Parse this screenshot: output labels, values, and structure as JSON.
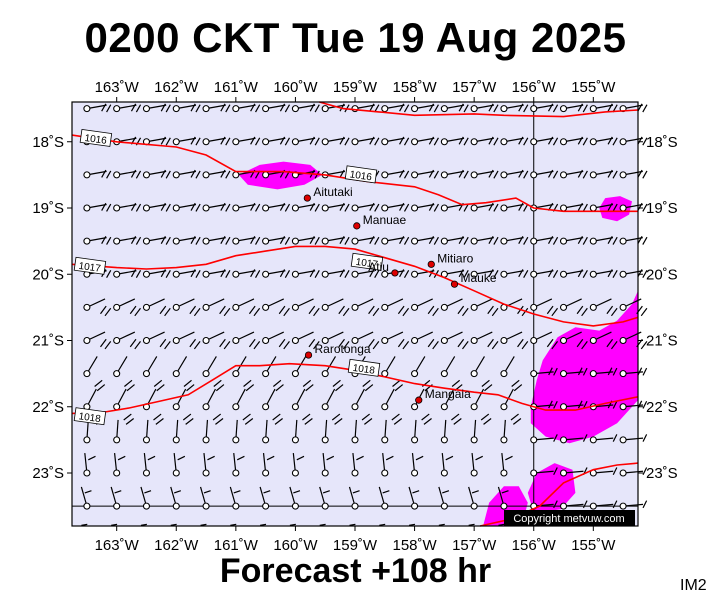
{
  "title": "0200 CKT Tue 19 Aug 2025",
  "forecast_label": "Forecast +108 hr",
  "model_id": "IM2",
  "copyright": "Copyright metvuw.com",
  "colors": {
    "background": "#e6e6fa",
    "isobar": "#ff0000",
    "rain": "#ff00ff",
    "island": "#dd0000"
  },
  "map": {
    "lon_range": [
      -163.75,
      -154.25
    ],
    "lat_range": [
      -23.8,
      -17.4
    ],
    "grid_lines": {
      "lon": -156,
      "lat": -23.5
    },
    "lon_ticks": [
      {
        "value": -163,
        "label": "163˚W"
      },
      {
        "value": -162,
        "label": "162˚W"
      },
      {
        "value": -161,
        "label": "161˚W"
      },
      {
        "value": -160,
        "label": "160˚W"
      },
      {
        "value": -159,
        "label": "159˚W"
      },
      {
        "value": -158,
        "label": "158˚W"
      },
      {
        "value": -157,
        "label": "157˚W"
      },
      {
        "value": -156,
        "label": "156˚W"
      },
      {
        "value": -155,
        "label": "155˚W"
      }
    ],
    "lat_ticks": [
      {
        "value": -18,
        "label": "18˚S"
      },
      {
        "value": -19,
        "label": "19˚S"
      },
      {
        "value": -20,
        "label": "20˚S"
      },
      {
        "value": -21,
        "label": "21˚S"
      },
      {
        "value": -22,
        "label": "22˚S"
      },
      {
        "value": -23,
        "label": "23˚S"
      }
    ],
    "islands": [
      {
        "name": "Aitutaki",
        "lon": -159.8,
        "lat": -18.85,
        "label_side": "right"
      },
      {
        "name": "Manuae",
        "lon": -158.97,
        "lat": -19.27,
        "label_side": "right"
      },
      {
        "name": "Mitiaro",
        "lon": -157.72,
        "lat": -19.85,
        "label_side": "right"
      },
      {
        "name": "Atiu",
        "lon": -158.33,
        "lat": -19.98,
        "label_side": "left"
      },
      {
        "name": "Mauke",
        "lon": -157.33,
        "lat": -20.15,
        "label_side": "right"
      },
      {
        "name": "Rarotonga",
        "lon": -159.78,
        "lat": -21.22,
        "label_side": "right"
      },
      {
        "name": "Mangaia",
        "lon": -157.93,
        "lat": -21.9,
        "label_side": "right"
      }
    ],
    "isobars": [
      {
        "label": "1016",
        "label_at": [
          -163.35,
          -17.95
        ],
        "points": [
          [
            -163.75,
            -17.9
          ],
          [
            -163,
            -18.0
          ],
          [
            -162,
            -18.08
          ],
          [
            -161.5,
            -18.2
          ],
          [
            -161,
            -18.45
          ],
          [
            -160.2,
            -18.45
          ],
          [
            -159.5,
            -18.5
          ],
          [
            -158.8,
            -18.6
          ],
          [
            -158,
            -18.68
          ],
          [
            -157.6,
            -18.8
          ],
          [
            -157.2,
            -18.95
          ],
          [
            -156.8,
            -18.92
          ],
          [
            -156.3,
            -18.85
          ],
          [
            -156,
            -19.0
          ],
          [
            -155.5,
            -19.05
          ],
          [
            -155,
            -19.05
          ],
          [
            -154.25,
            -19.05
          ]
        ]
      },
      {
        "label": "1016",
        "label_at": [
          -158.9,
          -18.5
        ],
        "points": [
          [
            -159.6,
            -17.4
          ],
          [
            -159.2,
            -17.5
          ],
          [
            -158.6,
            -17.55
          ],
          [
            -158,
            -17.6
          ],
          [
            -157,
            -17.58
          ],
          [
            -156.5,
            -17.6
          ],
          [
            -155.5,
            -17.62
          ],
          [
            -154.8,
            -17.55
          ],
          [
            -154.25,
            -17.52
          ]
        ]
      },
      {
        "label": "1017",
        "label_at": [
          -163.45,
          -19.88
        ],
        "points": [
          [
            -163.75,
            -19.85
          ],
          [
            -163,
            -19.9
          ],
          [
            -162.5,
            -19.92
          ],
          [
            -162,
            -19.9
          ],
          [
            -161.5,
            -19.85
          ],
          [
            -161,
            -19.72
          ],
          [
            -160.5,
            -19.65
          ],
          [
            -160,
            -19.58
          ],
          [
            -159.5,
            -19.58
          ],
          [
            -159,
            -19.62
          ],
          [
            -158.5,
            -19.75
          ],
          [
            -158,
            -19.88
          ],
          [
            -157.5,
            -20.05
          ],
          [
            -157,
            -20.25
          ],
          [
            -156.5,
            -20.45
          ],
          [
            -156,
            -20.6
          ],
          [
            -155.5,
            -20.72
          ],
          [
            -155,
            -20.78
          ],
          [
            -154.5,
            -20.72
          ],
          [
            -154.25,
            -20.65
          ]
        ]
      },
      {
        "label": "1017",
        "label_at": [
          -158.8,
          -19.82
        ],
        "points": []
      },
      {
        "label": "1018",
        "label_at": [
          -163.45,
          -22.15
        ],
        "points": [
          [
            -163.75,
            -22.1
          ],
          [
            -163.2,
            -22.08
          ],
          [
            -162.8,
            -22.02
          ],
          [
            -162.3,
            -21.92
          ],
          [
            -161.8,
            -21.82
          ],
          [
            -161.4,
            -21.6
          ],
          [
            -161,
            -21.38
          ],
          [
            -160.6,
            -21.38
          ],
          [
            -160.1,
            -21.35
          ],
          [
            -159.5,
            -21.38
          ],
          [
            -159,
            -21.45
          ],
          [
            -158.5,
            -21.55
          ],
          [
            -158,
            -21.65
          ],
          [
            -157.5,
            -21.72
          ],
          [
            -157,
            -21.78
          ],
          [
            -156.6,
            -21.82
          ],
          [
            -156.2,
            -21.95
          ],
          [
            -155.8,
            -22.05
          ],
          [
            -155.3,
            -22.05
          ],
          [
            -154.8,
            -21.95
          ],
          [
            -154.25,
            -21.85
          ]
        ]
      },
      {
        "label": "1018",
        "label_at": [
          -158.85,
          -21.42
        ],
        "points": []
      },
      {
        "label": "",
        "label_at": null,
        "points": [
          [
            -156.9,
            -23.8
          ],
          [
            -156.4,
            -23.7
          ],
          [
            -155.9,
            -23.5
          ],
          [
            -155.5,
            -23.15
          ],
          [
            -155,
            -22.95
          ],
          [
            -154.6,
            -22.88
          ],
          [
            -154.25,
            -22.85
          ]
        ]
      }
    ],
    "rain_areas": [
      [
        [
          -160.95,
          -18.5
        ],
        [
          -160.6,
          -18.35
        ],
        [
          -160.2,
          -18.3
        ],
        [
          -159.75,
          -18.35
        ],
        [
          -159.55,
          -18.5
        ],
        [
          -159.85,
          -18.65
        ],
        [
          -160.3,
          -18.72
        ],
        [
          -160.8,
          -18.65
        ]
      ],
      [
        [
          -154.9,
          -19.0
        ],
        [
          -154.8,
          -18.85
        ],
        [
          -154.55,
          -18.82
        ],
        [
          -154.35,
          -18.9
        ],
        [
          -154.4,
          -19.1
        ],
        [
          -154.6,
          -19.2
        ],
        [
          -154.85,
          -19.15
        ]
      ],
      [
        [
          -156.05,
          -22.0
        ],
        [
          -155.95,
          -21.6
        ],
        [
          -155.85,
          -21.3
        ],
        [
          -155.6,
          -20.95
        ],
        [
          -155.3,
          -20.8
        ],
        [
          -154.9,
          -20.85
        ],
        [
          -154.6,
          -20.7
        ],
        [
          -154.35,
          -20.45
        ],
        [
          -154.25,
          -20.25
        ],
        [
          -154.25,
          -21.9
        ],
        [
          -154.6,
          -22.25
        ],
        [
          -155.0,
          -22.45
        ],
        [
          -155.4,
          -22.55
        ],
        [
          -155.8,
          -22.45
        ],
        [
          -156.05,
          -22.25
        ]
      ],
      [
        [
          -156.1,
          -23.3
        ],
        [
          -155.95,
          -23.0
        ],
        [
          -155.65,
          -22.85
        ],
        [
          -155.35,
          -22.95
        ],
        [
          -155.3,
          -23.3
        ],
        [
          -155.55,
          -23.55
        ],
        [
          -156.0,
          -23.6
        ]
      ],
      [
        [
          -156.85,
          -23.8
        ],
        [
          -156.75,
          -23.45
        ],
        [
          -156.5,
          -23.2
        ],
        [
          -156.25,
          -23.2
        ],
        [
          -156.1,
          -23.45
        ],
        [
          -156.2,
          -23.8
        ]
      ]
    ]
  }
}
